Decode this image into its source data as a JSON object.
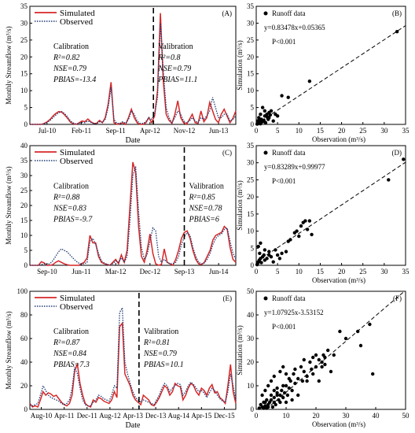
{
  "chart_data": [
    {
      "panel": "(A)",
      "type": "line",
      "ylabel": "Monthly Streamflow (m³/s)",
      "xlabel": "Date",
      "ylim": [
        0,
        35
      ],
      "yticks": [
        0,
        5,
        10,
        15,
        20,
        25,
        30,
        35
      ],
      "xticks": [
        "Jul-10",
        "Feb-11",
        "Sep-11",
        "Apr-12",
        "Nov-12",
        "Jun-13"
      ],
      "split_label_left": "Calibration",
      "split_label_right": "Valibration",
      "stats_left": [
        "R²=0.82",
        "NSE=0.79",
        "PBIAS=-13.4"
      ],
      "stats_right": [
        "R²=0.8",
        "NSE=0.79",
        "PBIAS=11.1"
      ],
      "legend_position": "top-left",
      "series": [
        {
          "name": "Simulated",
          "color": "#d62728",
          "style": "solid",
          "values": [
            0,
            0,
            0,
            0,
            0,
            0.3,
            0.8,
            1.5,
            2.5,
            3.3,
            3.8,
            3.6,
            2.8,
            1.8,
            0.6,
            0.2,
            0,
            0.5,
            1,
            0.8,
            1.6,
            0.8,
            0.3,
            0.3,
            1.2,
            0.5,
            2,
            6,
            12.5,
            0.5,
            0,
            0.2,
            0.5,
            0,
            2,
            4.5,
            2,
            0.5,
            0,
            0,
            0.5,
            2,
            0.5,
            2.5,
            10,
            33,
            13,
            3,
            1.2,
            0.3,
            3,
            7,
            2,
            0.5,
            0,
            1.5,
            3,
            0.5,
            0.3,
            4,
            0.8,
            2,
            6.5,
            4,
            1.5,
            0.5,
            3,
            4.5,
            2.5,
            0.5,
            1.8,
            4
          ]
        },
        {
          "name": "Observed",
          "color": "#1f3b73",
          "style": "dotted",
          "values": [
            0,
            0,
            0,
            0,
            0,
            0.2,
            0.6,
            1.2,
            2,
            2.8,
            3.5,
            3.8,
            3.2,
            2.2,
            1,
            0.4,
            0.1,
            0.3,
            0.6,
            0.5,
            1,
            0.6,
            0.3,
            0.2,
            0.8,
            0.6,
            1.5,
            5,
            11,
            1.5,
            0.3,
            0.3,
            0.8,
            0.3,
            1.5,
            4,
            3,
            1,
            0.3,
            0.3,
            0.8,
            2,
            1.5,
            3,
            8,
            30,
            16,
            5,
            2,
            0.5,
            2,
            4,
            3,
            1,
            0.5,
            1,
            2,
            1,
            0.5,
            2,
            1.5,
            2.5,
            4,
            8,
            5,
            2,
            2,
            3,
            3,
            1,
            1.5,
            2.5
          ]
        }
      ]
    },
    {
      "panel": "(B)",
      "type": "scatter",
      "ylabel": "Simulation (m³/s)",
      "xlabel": "Observation (m³/s)",
      "xlim": [
        0,
        35
      ],
      "ylim": [
        0,
        35
      ],
      "ticks": [
        0,
        5,
        10,
        15,
        20,
        25,
        30,
        35
      ],
      "legend": "Runoff data",
      "equation": "y=0.83478x+0.05365",
      "pvalue": "P<0.001",
      "fit": {
        "slope": 0.83478,
        "intercept": 0.05365
      },
      "points": [
        [
          0.2,
          0.1
        ],
        [
          0.5,
          0.3
        ],
        [
          0.8,
          0.5
        ],
        [
          1,
          0.2
        ],
        [
          1.2,
          1.5
        ],
        [
          1.5,
          0.8
        ],
        [
          1.8,
          1.2
        ],
        [
          2,
          2.5
        ],
        [
          2.2,
          0.5
        ],
        [
          2.5,
          3
        ],
        [
          2.8,
          1.5
        ],
        [
          3,
          2
        ],
        [
          3.3,
          2.8
        ],
        [
          3.5,
          4
        ],
        [
          4,
          1
        ],
        [
          1,
          3
        ],
        [
          0.3,
          1
        ],
        [
          0.6,
          2
        ],
        [
          1.5,
          5
        ],
        [
          2,
          4
        ],
        [
          3,
          3.5
        ],
        [
          4.5,
          3
        ],
        [
          5,
          2.5
        ],
        [
          6,
          8.5
        ],
        [
          7.5,
          8
        ],
        [
          12.5,
          12.8
        ],
        [
          33,
          27.5
        ],
        [
          0.4,
          0.2
        ],
        [
          0.9,
          0.7
        ],
        [
          1.3,
          0.9
        ],
        [
          2.6,
          2.1
        ],
        [
          0.7,
          1.4
        ]
      ]
    },
    {
      "panel": "(C)",
      "type": "line",
      "ylabel": "Monthly Streamflow (m³/s)",
      "xlabel": "",
      "ylim": [
        0,
        40
      ],
      "yticks": [
        0,
        5,
        10,
        15,
        20,
        25,
        30,
        35,
        40
      ],
      "xticks": [
        "Sep-10",
        "Jun-11",
        "Mar-12",
        "Dec-12",
        "Sep-13",
        "Jun-14"
      ],
      "split_label_left": "Calibration",
      "split_label_right": "Valibration",
      "stats_left": [
        "R²=0.88",
        "NSE=0.83",
        "PBIAS=-9.7"
      ],
      "stats_right": [
        "R²=0.85",
        "NSE=0.78",
        "PBIAS=6"
      ],
      "legend_position": "top-left",
      "series": [
        {
          "name": "Simulated",
          "color": "#d62728",
          "style": "solid",
          "values": [
            0,
            0,
            0,
            0,
            1.2,
            0.8,
            0,
            0,
            0.2,
            1,
            1.5,
            1,
            0.5,
            0.2,
            0,
            0,
            0,
            0,
            0.5,
            1,
            2.5,
            10,
            7.5,
            7.5,
            3,
            1,
            0.5,
            0.3,
            0,
            1,
            2,
            0.5,
            3.5,
            1,
            5,
            20,
            34.5,
            31,
            13,
            3,
            1,
            5,
            10.5,
            4,
            0.5,
            0,
            0.3,
            5.5,
            1,
            0.5,
            0,
            2,
            5,
            9,
            11,
            11.5,
            9,
            5,
            2,
            0.5,
            0.2,
            1,
            3,
            5,
            8.5,
            10,
            10.5,
            11,
            13,
            12,
            6,
            2,
            1
          ]
        },
        {
          "name": "Observed",
          "color": "#1f3b73",
          "style": "dotted",
          "values": [
            0,
            0,
            0,
            0,
            0.3,
            0.5,
            0.3,
            0.5,
            1.5,
            3,
            4.5,
            5.5,
            5,
            4.5,
            3.5,
            2.5,
            1.5,
            0.8,
            0.5,
            0.5,
            1,
            8,
            9,
            7,
            4,
            1.5,
            0.8,
            0.3,
            0.1,
            0.5,
            1.5,
            1,
            2.5,
            1,
            3,
            15,
            30,
            33,
            18,
            6,
            2,
            3.5,
            8,
            12.5,
            11.5,
            3,
            1,
            2,
            1,
            0.5,
            0.5,
            1,
            3,
            7,
            9.5,
            11,
            10,
            6,
            3,
            1,
            0.5,
            0.8,
            2,
            4,
            7,
            9,
            10,
            10.5,
            12,
            12.5,
            8,
            4,
            2
          ]
        }
      ]
    },
    {
      "panel": "(D)",
      "type": "scatter",
      "ylabel": "Simulation (m³/s)",
      "xlabel": "Observation (m³/s)",
      "xlim": [
        0,
        35
      ],
      "ylim": [
        0,
        35
      ],
      "ticks": [
        0,
        5,
        10,
        15,
        20,
        25,
        30,
        35
      ],
      "legend": "Runoff data",
      "equation": "y=0.83289x+0.99977",
      "pvalue": "P<0.001",
      "fit": {
        "slope": 0.83289,
        "intercept": 0.99977
      },
      "points": [
        [
          0.3,
          0.5
        ],
        [
          0.5,
          1
        ],
        [
          0.8,
          3.5
        ],
        [
          1,
          2
        ],
        [
          1.2,
          0.8
        ],
        [
          1.5,
          2.5
        ],
        [
          2,
          1.5
        ],
        [
          2.5,
          2
        ],
        [
          3,
          3
        ],
        [
          3.5,
          2.5
        ],
        [
          4,
          1
        ],
        [
          4.5,
          4.5
        ],
        [
          5,
          3
        ],
        [
          5.5,
          2
        ],
        [
          6,
          3.5
        ],
        [
          0.5,
          5.5
        ],
        [
          1,
          6.5
        ],
        [
          7,
          4
        ],
        [
          7.5,
          7
        ],
        [
          8,
          7.5
        ],
        [
          9,
          9.5
        ],
        [
          9.5,
          10
        ],
        [
          10,
          8.5
        ],
        [
          10.5,
          11.5
        ],
        [
          11,
          12.5
        ],
        [
          11.5,
          13
        ],
        [
          12,
          10.5
        ],
        [
          12.5,
          13
        ],
        [
          13,
          9
        ],
        [
          2,
          4.5
        ],
        [
          3,
          4
        ],
        [
          0.2,
          0.2
        ],
        [
          31,
          25
        ],
        [
          34.5,
          31
        ],
        [
          0.7,
          1.5
        ],
        [
          1.8,
          3
        ]
      ]
    },
    {
      "panel": "(E)",
      "type": "line",
      "ylabel": "Monthly Streamflow (m³/s)",
      "xlabel": "Date",
      "ylim": [
        0,
        100
      ],
      "yticks": [
        0,
        20,
        40,
        60,
        80,
        100
      ],
      "xticks": [
        "Aug-10",
        "Apr-11",
        "Dec-11",
        "Aug-12",
        "Apr-13",
        "Dec-13",
        "Aug-14",
        "Apr-15",
        "Dec-15"
      ],
      "split_label_left": "Calibration",
      "split_label_right": "Valibration",
      "stats_left": [
        "R²=0.87",
        "NSE=0.84",
        "PBIAS=7.3"
      ],
      "stats_right": [
        "R²=0.81",
        "NSE=0.79",
        "PBIAS=10.1"
      ],
      "legend_position": "top-left",
      "series": [
        {
          "name": "Simulated",
          "color": "#d62728",
          "style": "solid",
          "values": [
            5,
            2,
            3,
            2,
            8,
            15,
            12,
            14,
            13,
            11,
            12,
            9,
            6,
            4,
            3,
            5,
            12,
            33,
            38,
            22,
            12,
            5,
            3,
            2,
            8,
            6,
            10,
            9,
            7,
            6,
            5,
            8,
            15,
            10,
            70,
            73,
            30,
            25,
            20,
            12,
            8,
            6,
            4,
            12,
            10,
            8,
            4,
            3,
            6,
            10,
            15,
            20,
            18,
            12,
            15,
            22,
            20,
            19,
            8,
            12,
            18,
            22,
            20,
            15,
            12,
            18,
            16,
            12,
            18,
            21,
            14,
            15,
            10,
            8,
            5,
            20,
            38,
            15,
            5
          ]
        },
        {
          "name": "Observed",
          "color": "#1f3b73",
          "style": "dotted",
          "values": [
            4,
            3,
            4,
            5,
            12,
            20,
            16,
            12,
            10,
            9,
            8,
            7,
            5,
            4,
            5,
            8,
            18,
            36,
            30,
            18,
            8,
            4,
            3,
            3,
            6,
            8,
            12,
            11,
            9,
            8,
            7,
            12,
            20,
            18,
            82,
            86,
            40,
            30,
            22,
            15,
            10,
            8,
            6,
            8,
            7,
            6,
            5,
            4,
            8,
            12,
            18,
            22,
            20,
            15,
            18,
            20,
            22,
            21,
            12,
            15,
            20,
            23,
            21,
            18,
            15,
            16,
            14,
            10,
            14,
            18,
            16,
            12,
            9,
            7,
            6,
            15,
            30,
            20,
            8
          ]
        }
      ]
    },
    {
      "panel": "(F)",
      "type": "scatter",
      "ylabel": "Simulation (m³/s)",
      "xlabel": "Observation (m³/s)",
      "xlim": [
        0,
        50
      ],
      "ylim": [
        0,
        50
      ],
      "ticks": [
        0,
        10,
        20,
        30,
        40,
        50
      ],
      "legend": "Runoff data",
      "equation": "y=1.07925x-3.53152",
      "pvalue": "P<0.001",
      "fit": {
        "slope": 1.07925,
        "intercept": -3.53152
      },
      "points": [
        [
          1,
          0.5
        ],
        [
          2,
          1
        ],
        [
          2.5,
          3
        ],
        [
          3,
          1.5
        ],
        [
          3.5,
          0.5
        ],
        [
          4,
          2
        ],
        [
          4.5,
          3
        ],
        [
          5,
          4
        ],
        [
          5.5,
          1
        ],
        [
          6,
          5
        ],
        [
          6.5,
          2
        ],
        [
          7,
          6
        ],
        [
          7.5,
          4
        ],
        [
          8,
          3
        ],
        [
          8.5,
          8
        ],
        [
          9,
          5
        ],
        [
          9.5,
          7
        ],
        [
          10,
          10
        ],
        [
          10.5,
          6
        ],
        [
          11,
          9
        ],
        [
          11.5,
          12
        ],
        [
          12,
          8
        ],
        [
          12.5,
          15
        ],
        [
          13,
          11
        ],
        [
          14,
          13
        ],
        [
          15,
          18
        ],
        [
          15.5,
          12
        ],
        [
          16,
          16
        ],
        [
          17,
          14
        ],
        [
          18,
          20
        ],
        [
          18.5,
          17
        ],
        [
          19,
          22
        ],
        [
          20,
          18
        ],
        [
          21,
          21
        ],
        [
          22,
          20
        ],
        [
          22.5,
          23
        ],
        [
          23,
          19
        ],
        [
          24,
          25
        ],
        [
          25,
          16
        ],
        [
          26,
          23
        ],
        [
          28,
          33
        ],
        [
          30,
          30
        ],
        [
          34,
          33
        ],
        [
          35,
          27
        ],
        [
          38,
          36
        ],
        [
          39,
          15
        ],
        [
          2,
          6
        ],
        [
          3,
          8
        ],
        [
          4,
          10
        ],
        [
          5,
          12
        ],
        [
          6,
          14
        ],
        [
          7,
          9
        ],
        [
          8,
          16
        ],
        [
          9,
          18
        ],
        [
          10,
          3
        ],
        [
          12,
          4
        ],
        [
          14,
          6
        ],
        [
          6,
          3
        ],
        [
          8,
          6
        ],
        [
          11,
          13
        ],
        [
          13,
          17
        ],
        [
          16,
          21
        ],
        [
          19,
          15
        ],
        [
          21,
          12
        ],
        [
          23,
          22
        ],
        [
          3,
          3
        ],
        [
          5,
          6
        ],
        [
          7,
          7
        ],
        [
          9,
          10
        ],
        [
          4,
          1
        ],
        [
          1.5,
          2
        ],
        [
          2.5,
          0.5
        ],
        [
          3.5,
          4
        ],
        [
          6,
          8
        ],
        [
          10,
          15
        ],
        [
          17,
          12
        ],
        [
          20,
          23
        ],
        [
          22,
          18
        ]
      ]
    }
  ]
}
